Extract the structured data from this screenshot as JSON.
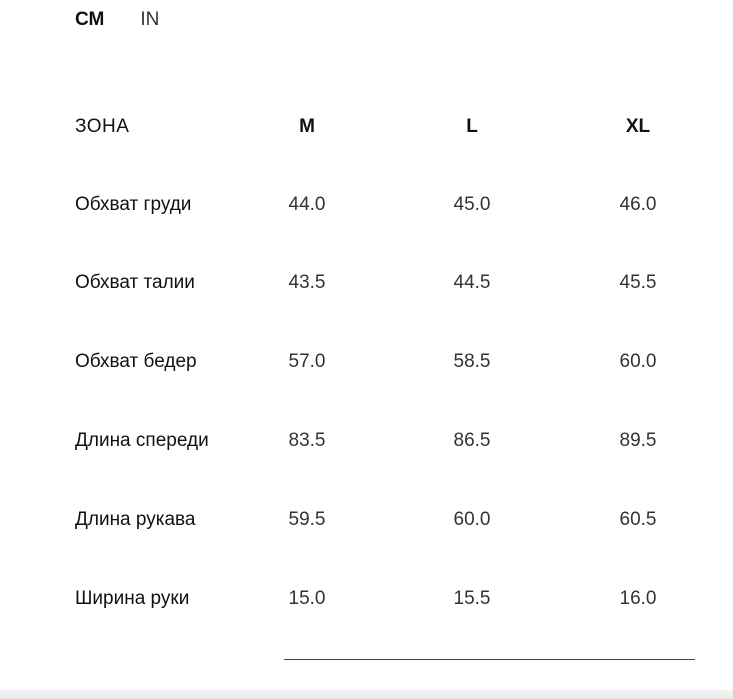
{
  "units": {
    "options": [
      "СМ",
      "IN"
    ],
    "selected": "СМ"
  },
  "table": {
    "header": {
      "zone": "ЗОНА",
      "sizes": [
        "M",
        "L",
        "XL"
      ]
    },
    "rows": [
      {
        "label": "Обхват груди",
        "values": [
          "44.0",
          "45.0",
          "46.0"
        ]
      },
      {
        "label": "Обхват талии",
        "values": [
          "43.5",
          "44.5",
          "45.5"
        ]
      },
      {
        "label": "Обхват бедер",
        "values": [
          "57.0",
          "58.5",
          "60.0"
        ]
      },
      {
        "label": "Длина спереди",
        "values": [
          "83.5",
          "86.5",
          "89.5"
        ]
      },
      {
        "label": "Длина рукава",
        "values": [
          "59.5",
          "60.0",
          "60.5"
        ]
      },
      {
        "label": "Ширина руки",
        "values": [
          "15.0",
          "15.5",
          "16.0"
        ]
      }
    ]
  }
}
